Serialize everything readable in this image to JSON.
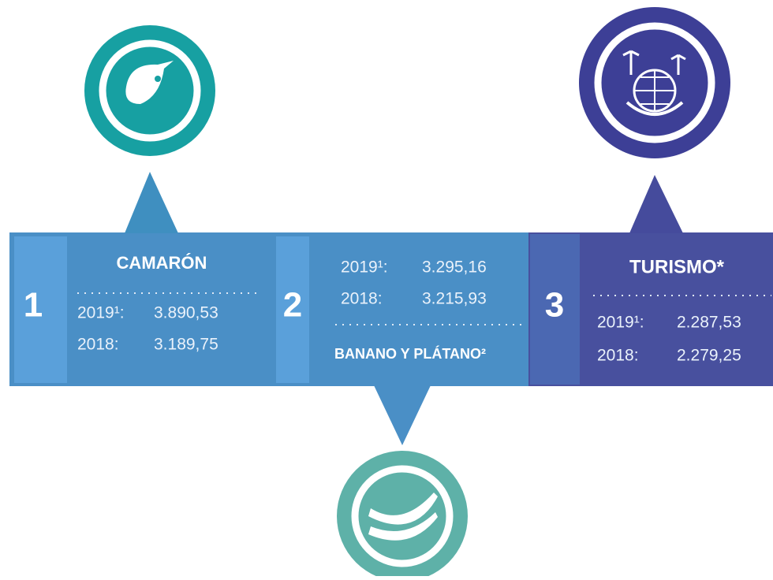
{
  "items": [
    {
      "number": "1",
      "title": "CAMARÓN",
      "rows": [
        {
          "label": "2019¹:",
          "value": "3.890,53"
        },
        {
          "label": "2018:",
          "value": "3.189,75"
        }
      ]
    },
    {
      "number": "2",
      "title": "BANANO Y PLÁTANO²",
      "rows": [
        {
          "label": "2019¹:",
          "value": "3.295,16"
        },
        {
          "label": "2018:",
          "value": "3.215,93"
        }
      ]
    },
    {
      "number": "3",
      "title": "TURISMO*",
      "rows": [
        {
          "label": "2019¹:",
          "value": "2.287,53"
        },
        {
          "label": "2018:",
          "value": "2.279,25"
        }
      ]
    }
  ]
}
